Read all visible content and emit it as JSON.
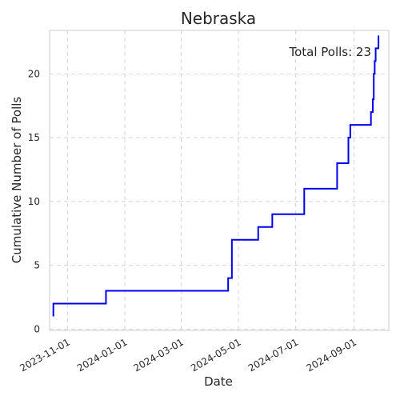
{
  "chart_data": {
    "type": "line",
    "title": "Nebraska",
    "xlabel": "Date",
    "ylabel": "Cumulative Number of Polls",
    "annotation": "Total Polls: 23",
    "grid": true,
    "xlim": [
      "2023-10-13",
      "2024-10-08"
    ],
    "ylim": [
      -0.1,
      23.4
    ],
    "x_ticks": [
      "2023-11-01",
      "2024-01-01",
      "2024-03-01",
      "2024-05-01",
      "2024-07-01",
      "2024-09-01"
    ],
    "y_ticks": [
      0,
      5,
      10,
      15,
      20
    ],
    "line_color": "#0000ee",
    "series": [
      {
        "x": [
          "2023-10-17",
          "2023-10-17",
          "2023-12-12",
          "2024-04-20",
          "2024-04-24",
          "2024-04-26",
          "2024-05-22",
          "2024-06-06",
          "2024-07-10",
          "2024-08-14",
          "2024-08-26",
          "2024-08-28",
          "2024-09-19",
          "2024-09-21",
          "2024-09-22",
          "2024-09-23",
          "2024-09-24",
          "2024-09-27"
        ],
        "y": [
          1,
          2,
          3,
          4,
          7,
          7,
          8,
          9,
          11,
          13,
          15,
          16,
          17,
          18,
          20,
          21,
          22,
          23
        ]
      }
    ]
  }
}
